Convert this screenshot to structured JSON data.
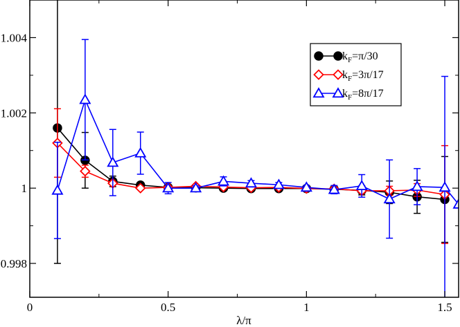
{
  "chart_data": {
    "type": "line",
    "title": "",
    "xlabel": "λ/π",
    "ylabel": "",
    "xlim": [
      0,
      1.55
    ],
    "ylim": [
      0.9971,
      1.005
    ],
    "x_ticks": [
      {
        "value": 0,
        "label": "0"
      },
      {
        "value": 0.5,
        "label": "0.5"
      },
      {
        "value": 1,
        "label": "1"
      },
      {
        "value": 1.5,
        "label": "1.5"
      }
    ],
    "y_ticks": [
      {
        "value": 0.998,
        "label": "0.998"
      },
      {
        "value": 1.0,
        "label": "1"
      },
      {
        "value": 1.002,
        "label": "1.002"
      },
      {
        "value": 1.004,
        "label": "1.004"
      }
    ],
    "legend_position": "top-right",
    "series": [
      {
        "name": "kF=π/30",
        "legend_main": "k",
        "legend_sub": "F",
        "legend_rest": "=π/30",
        "color": "#000000",
        "marker": "circle",
        "x": [
          0.1,
          0.2,
          0.3,
          0.4,
          0.5,
          0.6,
          0.7,
          0.8,
          0.9,
          1.0,
          1.1,
          1.2,
          1.3,
          1.4,
          1.5
        ],
        "y": [
          1.0016,
          1.00074,
          1.00018,
          1.00008,
          1.00002,
          1.00001,
          1.0,
          0.99999,
          0.99999,
          0.99999,
          0.99997,
          0.99994,
          0.99989,
          0.99977,
          0.9997
        ],
        "err": [
          0.0036,
          0.00074,
          0.00014,
          4e-05,
          3e-05,
          2e-05,
          2e-05,
          3e-05,
          3e-05,
          4e-05,
          6e-05,
          0.00012,
          0.0003,
          0.00044,
          0.00114
        ]
      },
      {
        "name": "kF=3π/17",
        "legend_main": "k",
        "legend_sub": "F",
        "legend_rest": "=3π/17",
        "color": "#ff0000",
        "marker": "diamond",
        "x": [
          0.1,
          0.2,
          0.3,
          0.4,
          0.5,
          0.6,
          0.7,
          0.8,
          0.9,
          1.0,
          1.1,
          1.2,
          1.3,
          1.4,
          1.5
        ],
        "y": [
          1.0012,
          1.00045,
          1.00013,
          1.0,
          1.00002,
          1.00005,
          1.00003,
          1.00001,
          1.00002,
          0.99999,
          0.99998,
          0.99993,
          0.99993,
          0.99995,
          0.99983
        ],
        "err": [
          0.00091,
          0.00016,
          3e-05,
          2e-05,
          2e-05,
          2e-05,
          2e-05,
          2e-05,
          2e-05,
          2e-05,
          3e-05,
          5e-05,
          0.00012,
          0.00017,
          0.0013
        ]
      },
      {
        "name": "kF=8π/17",
        "legend_main": "k",
        "legend_sub": "F",
        "legend_rest": "=8π/17",
        "color": "#0000ff",
        "marker": "triangle",
        "x": [
          0.1,
          0.2,
          0.3,
          0.4,
          0.5,
          0.6,
          0.7,
          0.8,
          0.9,
          1.0,
          1.1,
          1.2,
          1.3,
          1.4,
          1.5,
          1.55
        ],
        "y": [
          0.99994,
          1.00235,
          1.00068,
          1.00093,
          1.0,
          1.0,
          1.00018,
          1.00013,
          1.00009,
          1.00002,
          0.99996,
          1.00006,
          0.99971,
          1.00004,
          1.00002,
          0.99957
        ],
        "err": [
          0.00128,
          0.0016,
          0.00088,
          0.00056,
          0.00015,
          6e-05,
          0.00012,
          7e-05,
          6e-05,
          5e-05,
          0.00011,
          0.0003,
          0.00104,
          0.00048,
          0.00295,
          0.0
        ]
      }
    ]
  }
}
